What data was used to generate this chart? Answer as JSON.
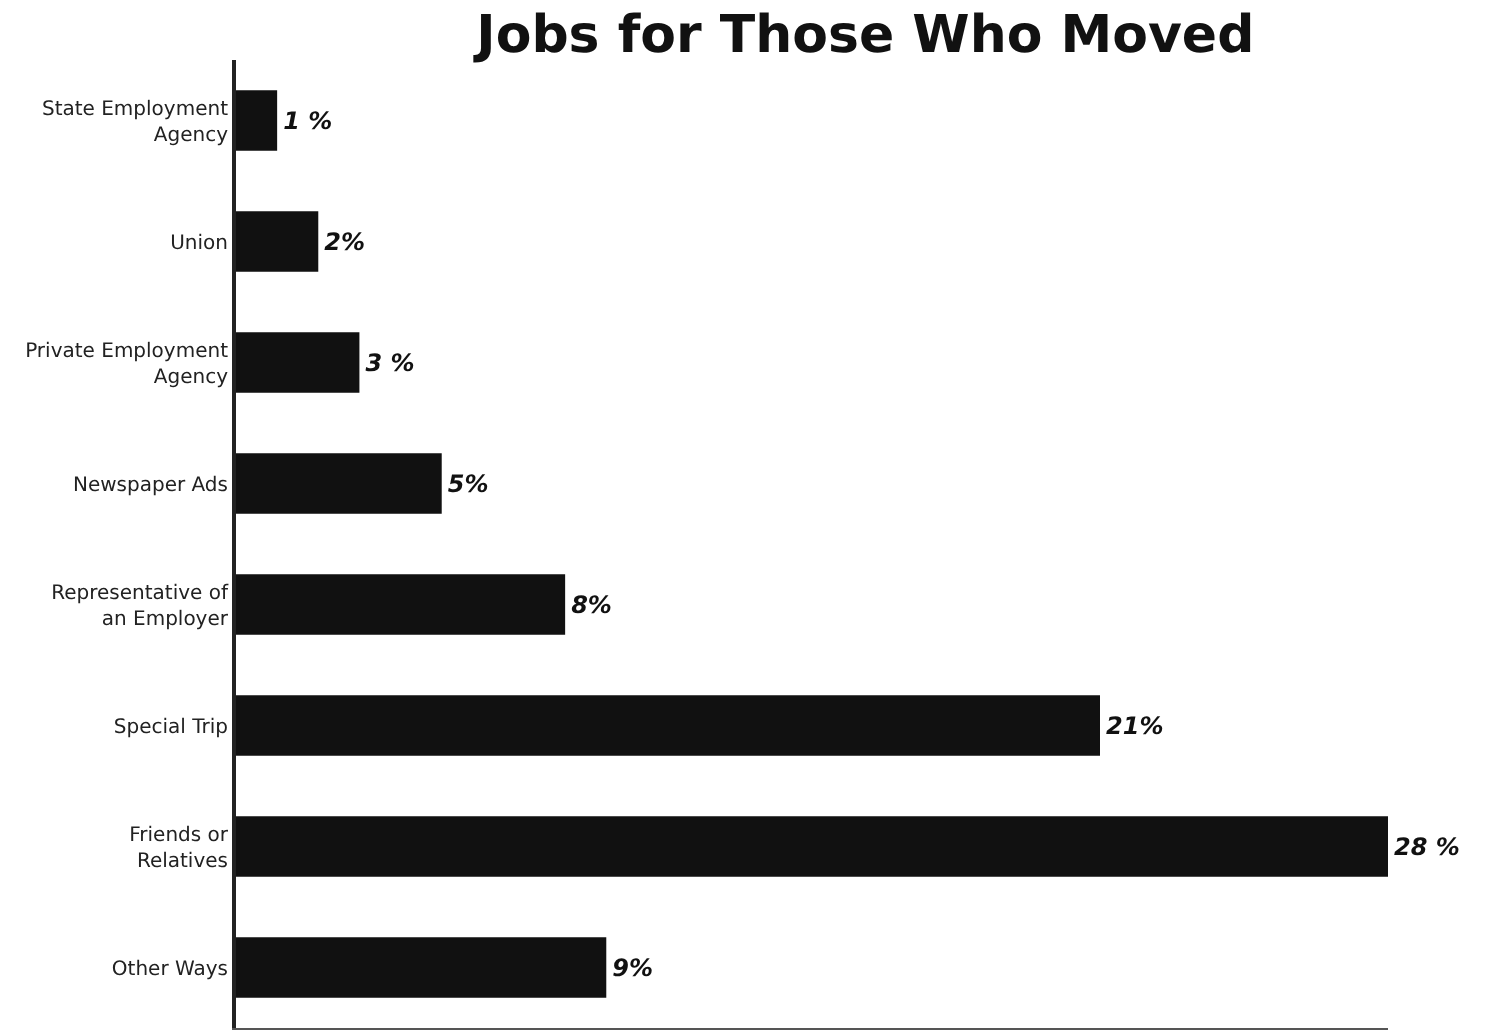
{
  "chart_data": {
    "type": "bar",
    "orientation": "horizontal",
    "title": "Jobs for Those Who Moved",
    "categories": [
      "State Employment Agency",
      "Union",
      "Private Employment Agency",
      "Newspaper Ads",
      "Representative of an Employer",
      "Special Trip",
      "Friends or Relatives",
      "Other Ways"
    ],
    "values": [
      1,
      2,
      3,
      5,
      8,
      21,
      28,
      9
    ],
    "value_labels": [
      "1 %",
      "2%",
      "3 %",
      "5%",
      "8%",
      "21%",
      "28 %",
      "9%"
    ],
    "color": "#111111",
    "grid": false,
    "legend": false
  }
}
